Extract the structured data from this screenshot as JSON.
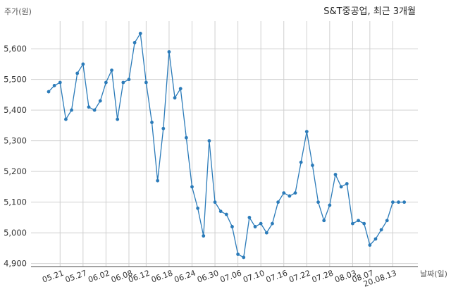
{
  "chart_data": {
    "type": "line",
    "title": "S&T중공업, 최근 3개월",
    "ylabel": "주가(원)",
    "xlabel": "날짜(일)",
    "ylim": [
      4890,
      5690
    ],
    "yticks": [
      4900,
      5000,
      5100,
      5200,
      5300,
      5400,
      5500,
      5600
    ],
    "ytick_labels": [
      "4,900",
      "5,000",
      "5,100",
      "5,200",
      "5,300",
      "5,400",
      "5,500",
      "5,600"
    ],
    "xtick_labels": [
      "05.21",
      "05.27",
      "06.02",
      "06.08",
      "06.12",
      "06.18",
      "06.24",
      "06.30",
      "07.06",
      "07.10",
      "07.16",
      "07.22",
      "07.28",
      "08.03",
      "08.07",
      "20.08.13"
    ],
    "xtick_index": [
      2,
      6,
      10,
      14,
      17,
      21,
      25,
      29,
      33,
      37,
      41,
      45,
      49,
      53,
      56,
      60
    ],
    "grid": true,
    "color": "#2b7bb9",
    "series": [
      {
        "values": [
          5460,
          5480,
          5490,
          5370,
          5400,
          5520,
          5550,
          5410,
          5400,
          5430,
          5490,
          5530,
          5370,
          5490,
          5500,
          5620,
          5650,
          5490,
          5360,
          5170,
          5340,
          5590,
          5440,
          5470,
          5310,
          5150,
          5080,
          4990,
          5300,
          5100,
          5070,
          5060,
          5020,
          4930,
          4920,
          5050,
          5020,
          5030,
          5000,
          5030,
          5100,
          5130,
          5120,
          5130,
          5230,
          5330,
          5220,
          5100,
          5040,
          5090,
          5190,
          5150,
          5160,
          5030,
          5040,
          5030,
          4960,
          4980,
          5010,
          5040,
          5100,
          5100,
          5100
        ]
      }
    ]
  }
}
